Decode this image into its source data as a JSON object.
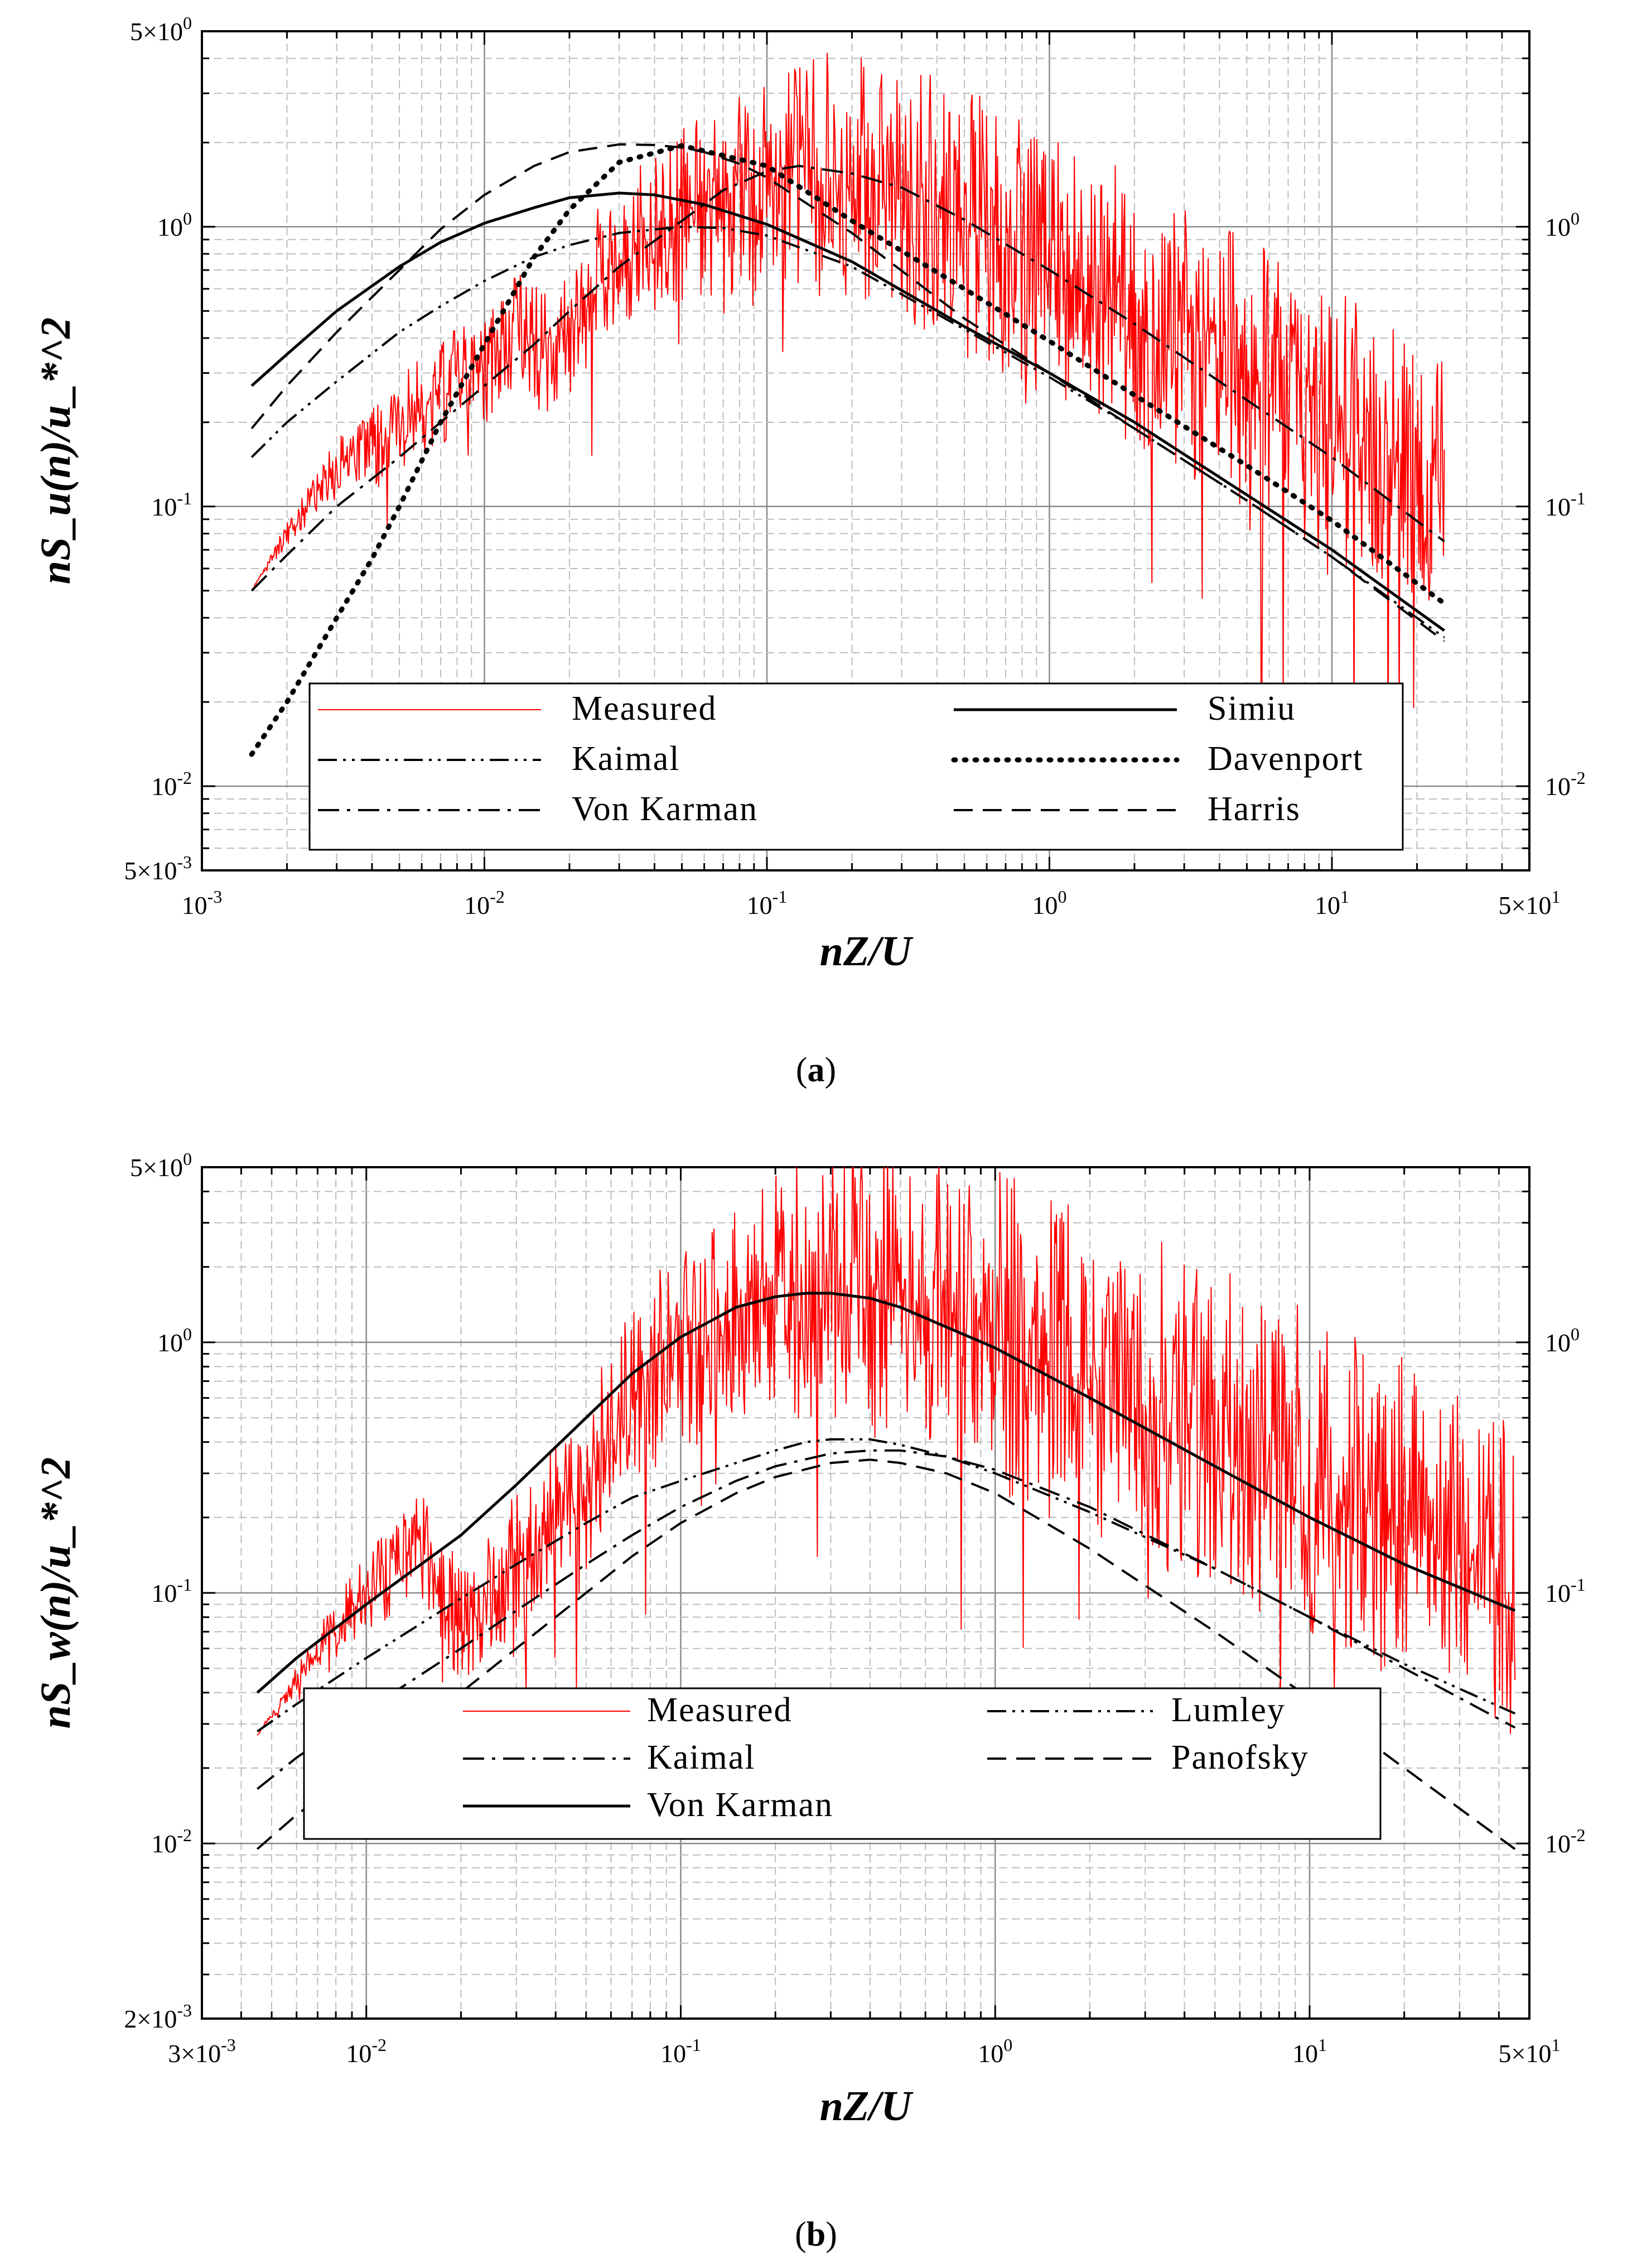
{
  "chart_data": [
    {
      "type": "line",
      "panel": "a",
      "caption_letter": "a",
      "xscale": "log",
      "yscale": "log",
      "xlim": [
        0.001,
        50
      ],
      "ylim": [
        0.005,
        5
      ],
      "xlabel": "nZ/U",
      "ylabel": "nS_u(n)/u_*^2",
      "grid": true,
      "legend_position": "bottom-center",
      "x_ticks": [
        {
          "value": 0.001,
          "base": "10",
          "exp": "-3",
          "mant": ""
        },
        {
          "value": 0.01,
          "base": "10",
          "exp": "-2",
          "mant": ""
        },
        {
          "value": 0.1,
          "base": "10",
          "exp": "-1",
          "mant": ""
        },
        {
          "value": 1,
          "base": "10",
          "exp": "0",
          "mant": ""
        },
        {
          "value": 10,
          "base": "10",
          "exp": "1",
          "mant": ""
        },
        {
          "value": 50,
          "base": "10",
          "exp": "1",
          "mant": "5×"
        }
      ],
      "y_ticks": [
        {
          "value": 5,
          "base": "10",
          "exp": "0",
          "mant": "5×"
        },
        {
          "value": 1,
          "base": "10",
          "exp": "0",
          "mant": ""
        },
        {
          "value": 0.1,
          "base": "10",
          "exp": "-1",
          "mant": ""
        },
        {
          "value": 0.01,
          "base": "10",
          "exp": "-2",
          "mant": ""
        },
        {
          "value": 0.005,
          "base": "10",
          "exp": "-3",
          "mant": "5×"
        }
      ],
      "y2_ticks": [
        {
          "value": 1,
          "base": "10",
          "exp": "0",
          "mant": ""
        },
        {
          "value": 0.1,
          "base": "10",
          "exp": "-1",
          "mant": ""
        },
        {
          "value": 0.01,
          "base": "10",
          "exp": "-2",
          "mant": ""
        }
      ],
      "measured": {
        "name": "Measured",
        "color": "#ff0000",
        "x_range": [
          0.0015,
          25
        ],
        "noise_decades": [
          0.0,
          0.08,
          0.1,
          0.15,
          0.2,
          0.22,
          0.22,
          0.22,
          0.22
        ],
        "noise_points": 1400,
        "trend_x": [
          0.0015,
          0.002,
          0.003,
          0.0045,
          0.006,
          0.008,
          0.01,
          0.013,
          0.016,
          0.02,
          0.025,
          0.03,
          0.04,
          0.05,
          0.07,
          0.1,
          0.13,
          0.2,
          0.3,
          0.5,
          1,
          2,
          5,
          10,
          25
        ],
        "trend_y": [
          0.05,
          0.08,
          0.14,
          0.17,
          0.23,
          0.28,
          0.3,
          0.45,
          0.35,
          0.42,
          0.65,
          0.78,
          0.95,
          1.1,
          1.25,
          1.5,
          1.6,
          1.55,
          1.35,
          1.05,
          0.75,
          0.5,
          0.3,
          0.2,
          0.12
        ]
      },
      "series": [
        {
          "name": "Simiu",
          "style": "solid",
          "x": [
            0.0015,
            0.002,
            0.003,
            0.005,
            0.007,
            0.01,
            0.015,
            0.02,
            0.03,
            0.04,
            0.06,
            0.1,
            0.2,
            0.5,
            1,
            2,
            5,
            10,
            25
          ],
          "y": [
            0.27,
            0.35,
            0.5,
            0.72,
            0.88,
            1.03,
            1.17,
            1.27,
            1.32,
            1.3,
            1.2,
            1.02,
            0.75,
            0.44,
            0.3,
            0.2,
            0.11,
            0.07,
            0.036
          ]
        },
        {
          "name": "Kaimal",
          "style": "dash-dot-dot",
          "x": [
            0.0015,
            0.002,
            0.003,
            0.005,
            0.007,
            0.01,
            0.015,
            0.02,
            0.03,
            0.05,
            0.07,
            0.1,
            0.2,
            0.5,
            1,
            2,
            5,
            10,
            25
          ],
          "y": [
            0.15,
            0.2,
            0.28,
            0.42,
            0.52,
            0.64,
            0.78,
            0.86,
            0.95,
            1.0,
            0.99,
            0.93,
            0.72,
            0.43,
            0.29,
            0.19,
            0.105,
            0.066,
            0.034
          ]
        },
        {
          "name": "Davenport",
          "style": "dotted",
          "x": [
            0.0015,
            0.002,
            0.003,
            0.004,
            0.005,
            0.007,
            0.01,
            0.015,
            0.02,
            0.03,
            0.05,
            0.1,
            0.2,
            0.5,
            1,
            2,
            5,
            10,
            25
          ],
          "y": [
            0.013,
            0.02,
            0.04,
            0.065,
            0.1,
            0.2,
            0.38,
            0.78,
            1.15,
            1.7,
            1.95,
            1.65,
            1.05,
            0.6,
            0.39,
            0.25,
            0.14,
            0.089,
            0.045
          ]
        },
        {
          "name": "Von Karman",
          "style": "dash-dot",
          "x": [
            0.0015,
            0.002,
            0.003,
            0.005,
            0.007,
            0.01,
            0.015,
            0.02,
            0.03,
            0.05,
            0.07,
            0.1,
            0.13,
            0.2,
            0.3,
            0.5,
            1,
            2,
            5,
            10,
            25
          ],
          "y": [
            0.05,
            0.067,
            0.1,
            0.15,
            0.2,
            0.27,
            0.38,
            0.5,
            0.72,
            1.05,
            1.35,
            1.58,
            1.65,
            1.55,
            1.38,
            1.06,
            0.7,
            0.45,
            0.24,
            0.15,
            0.075
          ]
        },
        {
          "name": "Harris",
          "style": "dashed",
          "x": [
            0.0015,
            0.002,
            0.003,
            0.005,
            0.007,
            0.01,
            0.015,
            0.02,
            0.03,
            0.04,
            0.05,
            0.06,
            0.08,
            0.1,
            0.2,
            0.5,
            1,
            2,
            5,
            10,
            25
          ],
          "y": [
            0.19,
            0.27,
            0.42,
            0.7,
            0.98,
            1.3,
            1.65,
            1.85,
            1.97,
            1.96,
            1.92,
            1.85,
            1.68,
            1.5,
            0.95,
            0.47,
            0.3,
            0.19,
            0.105,
            0.066,
            0.033
          ]
        }
      ],
      "legend": [
        {
          "key": "Measured",
          "label": "Measured"
        },
        {
          "key": "Simiu",
          "label": "Simiu"
        },
        {
          "key": "Kaimal",
          "label": "Kaimal"
        },
        {
          "key": "Davenport",
          "label": "Davenport"
        },
        {
          "key": "Von Karman",
          "label": "Von Karman"
        },
        {
          "key": "Harris",
          "label": "Harris"
        }
      ]
    },
    {
      "type": "line",
      "panel": "b",
      "caption_letter": "b",
      "xscale": "log",
      "yscale": "log",
      "xlim": [
        0.003,
        50
      ],
      "ylim": [
        0.002,
        5
      ],
      "xlabel": "nZ/U",
      "ylabel": "nS_w(n)/u_*^2",
      "grid": true,
      "legend_position": "bottom-center",
      "x_ticks": [
        {
          "value": 0.003,
          "base": "10",
          "exp": "-3",
          "mant": "3×"
        },
        {
          "value": 0.01,
          "base": "10",
          "exp": "-2",
          "mant": ""
        },
        {
          "value": 0.1,
          "base": "10",
          "exp": "-1",
          "mant": ""
        },
        {
          "value": 1,
          "base": "10",
          "exp": "0",
          "mant": ""
        },
        {
          "value": 10,
          "base": "10",
          "exp": "1",
          "mant": ""
        },
        {
          "value": 50,
          "base": "10",
          "exp": "1",
          "mant": "5×"
        }
      ],
      "y_ticks": [
        {
          "value": 5,
          "base": "10",
          "exp": "0",
          "mant": "5×"
        },
        {
          "value": 1,
          "base": "10",
          "exp": "0",
          "mant": ""
        },
        {
          "value": 0.1,
          "base": "10",
          "exp": "-1",
          "mant": ""
        },
        {
          "value": 0.01,
          "base": "10",
          "exp": "-2",
          "mant": ""
        },
        {
          "value": 0.002,
          "base": "10",
          "exp": "-3",
          "mant": "2×"
        }
      ],
      "y2_ticks": [
        {
          "value": 1,
          "base": "10",
          "exp": "0",
          "mant": ""
        },
        {
          "value": 0.1,
          "base": "10",
          "exp": "-1",
          "mant": ""
        },
        {
          "value": 0.01,
          "base": "10",
          "exp": "-2",
          "mant": ""
        }
      ],
      "measured": {
        "name": "Measured",
        "color": "#ff0000",
        "x_range": [
          0.0045,
          45
        ],
        "noise_decades": [
          0.0,
          0.1,
          0.15,
          0.2,
          0.28,
          0.3,
          0.3,
          0.3,
          0.3
        ],
        "noise_points": 1400,
        "trend_x": [
          0.0045,
          0.006,
          0.008,
          0.01,
          0.015,
          0.02,
          0.03,
          0.04,
          0.05,
          0.06,
          0.08,
          0.1,
          0.15,
          0.2,
          0.3,
          0.5,
          1,
          2,
          5,
          10,
          20,
          45
        ],
        "trend_y": [
          0.027,
          0.045,
          0.075,
          0.1,
          0.16,
          0.075,
          0.13,
          0.22,
          0.2,
          0.5,
          0.8,
          0.9,
          1.2,
          1.6,
          1.7,
          1.6,
          1.1,
          0.75,
          0.45,
          0.3,
          0.2,
          0.12
        ]
      },
      "series": [
        {
          "name": "Von Karman",
          "style": "solid",
          "x": [
            0.0045,
            0.006,
            0.01,
            0.02,
            0.03,
            0.05,
            0.07,
            0.1,
            0.15,
            0.2,
            0.25,
            0.3,
            0.4,
            0.5,
            0.7,
            1,
            2,
            5,
            10,
            20,
            45
          ],
          "y": [
            0.04,
            0.055,
            0.09,
            0.17,
            0.27,
            0.5,
            0.75,
            1.05,
            1.38,
            1.52,
            1.57,
            1.57,
            1.5,
            1.38,
            1.15,
            0.95,
            0.6,
            0.32,
            0.2,
            0.13,
            0.085
          ]
        },
        {
          "name": "Lumley",
          "style": "dash-dot-dot",
          "x": [
            0.0045,
            0.006,
            0.01,
            0.02,
            0.03,
            0.05,
            0.07,
            0.1,
            0.15,
            0.2,
            0.25,
            0.3,
            0.4,
            0.5,
            0.7,
            1,
            2,
            5,
            10,
            20,
            45
          ],
          "y": [
            0.028,
            0.036,
            0.055,
            0.095,
            0.13,
            0.19,
            0.24,
            0.28,
            0.33,
            0.37,
            0.4,
            0.41,
            0.41,
            0.39,
            0.35,
            0.3,
            0.21,
            0.125,
            0.08,
            0.052,
            0.033
          ]
        },
        {
          "name": "Kaimal",
          "style": "dash-dot",
          "x": [
            0.0045,
            0.006,
            0.01,
            0.02,
            0.03,
            0.05,
            0.07,
            0.1,
            0.15,
            0.2,
            0.3,
            0.4,
            0.5,
            0.7,
            1,
            2,
            5,
            10,
            20,
            45
          ],
          "y": [
            0.0165,
            0.022,
            0.034,
            0.06,
            0.085,
            0.13,
            0.17,
            0.22,
            0.28,
            0.32,
            0.36,
            0.37,
            0.37,
            0.35,
            0.31,
            0.22,
            0.125,
            0.08,
            0.05,
            0.029
          ]
        },
        {
          "name": "Panofsky",
          "style": "dashed",
          "x": [
            0.0045,
            0.006,
            0.01,
            0.02,
            0.03,
            0.05,
            0.07,
            0.1,
            0.15,
            0.2,
            0.3,
            0.4,
            0.5,
            0.7,
            1,
            2,
            5,
            10,
            20,
            45
          ],
          "y": [
            0.0095,
            0.013,
            0.021,
            0.04,
            0.06,
            0.1,
            0.14,
            0.19,
            0.25,
            0.29,
            0.33,
            0.34,
            0.33,
            0.3,
            0.25,
            0.15,
            0.07,
            0.038,
            0.02,
            0.0095
          ]
        }
      ],
      "legend": [
        {
          "key": "Measured",
          "label": "Measured"
        },
        {
          "key": "Lumley",
          "label": "Lumley"
        },
        {
          "key": "Kaimal",
          "label": "Kaimal"
        },
        {
          "key": "Panofsky",
          "label": "Panofsky"
        },
        {
          "key": "Von Karman",
          "label": "Von Karman"
        }
      ]
    }
  ]
}
